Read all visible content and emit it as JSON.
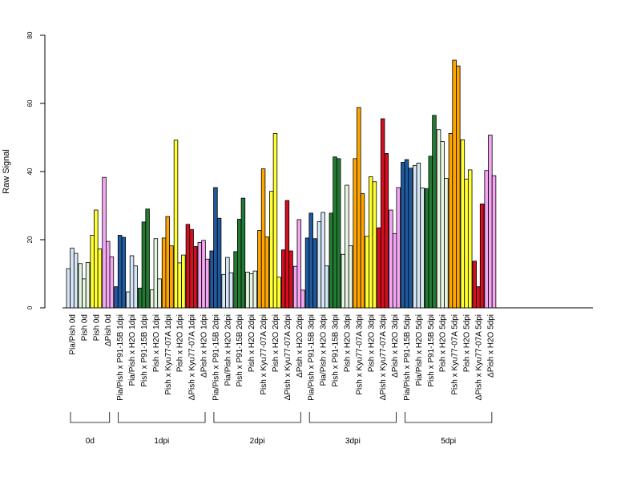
{
  "chart_data": {
    "type": "bar",
    "ylabel": "Raw Signal",
    "ylim": [
      0,
      80
    ],
    "yticks": [
      "0",
      "20",
      "40",
      "60",
      "80"
    ],
    "grid": false,
    "legend": "none",
    "colors": {
      "light_blue": "#d6e6f6",
      "light_green": "#e6f5e0",
      "yellow": "#ffff33",
      "pink": "#f4a6f2",
      "dark_blue": "#1f5aa0",
      "dark_green": "#237a32",
      "orange": "#ffa500",
      "red": "#d40f1f"
    },
    "categories": [
      {
        "label": "Pia/Pish 0d",
        "color": "light_blue",
        "values": [
          11.5,
          17.5,
          16.0
        ]
      },
      {
        "label": "Pish 0d",
        "color": "light_green",
        "values": [
          13.0,
          8.5,
          13.3
        ]
      },
      {
        "label": "Pish 0d",
        "color": "yellow",
        "values": [
          21.3,
          28.7,
          17.3
        ]
      },
      {
        "label": "ΔPish 0d",
        "color": "pink",
        "values": [
          38.3,
          19.5,
          15.0
        ]
      },
      {
        "label": "Pia/Pish x P91-15B 1dpi",
        "color": "dark_blue",
        "values": [
          6.2,
          21.3,
          20.7
        ]
      },
      {
        "label": "Pia/Pish x H2O 1dpi",
        "color": "light_blue",
        "values": [
          4.7,
          15.3,
          12.3
        ]
      },
      {
        "label": "Pish x P91-15B 1dpi",
        "color": "dark_green",
        "values": [
          5.8,
          25.2,
          29.0
        ]
      },
      {
        "label": "Pish x H2O 1dpi",
        "color": "light_green",
        "values": [
          5.3,
          20.3,
          8.5
        ]
      },
      {
        "label": "Pish x Kyu77-07A 1dpi",
        "color": "orange",
        "values": [
          20.5,
          26.8,
          18.2
        ]
      },
      {
        "label": "Pish x H2O 1dpi",
        "color": "yellow",
        "values": [
          49.2,
          13.2,
          15.5
        ]
      },
      {
        "label": "ΔPish x Kyu77-07A 1dpi",
        "color": "red",
        "values": [
          24.5,
          23.0,
          18.0
        ]
      },
      {
        "label": "ΔPish x H2O 1dpi",
        "color": "pink",
        "values": [
          19.2,
          19.8,
          14.3
        ]
      },
      {
        "label": "Pia/Pish x P91-15B 2dpi",
        "color": "dark_blue",
        "values": [
          16.7,
          35.3,
          26.3
        ]
      },
      {
        "label": "Pia/Pish x H2O 2dpi",
        "color": "light_blue",
        "values": [
          9.8,
          14.8,
          10.3
        ]
      },
      {
        "label": "Pish x P91-15B 2dpi",
        "color": "dark_green",
        "values": [
          16.5,
          26.0,
          32.2
        ]
      },
      {
        "label": "Pish x H2O 2dpi",
        "color": "light_green",
        "values": [
          10.5,
          10.0,
          10.8
        ]
      },
      {
        "label": "Pish x Kyu77-07A 2dpi",
        "color": "orange",
        "values": [
          22.7,
          40.8,
          20.8
        ]
      },
      {
        "label": "Pish x H2O 2dpi",
        "color": "yellow",
        "values": [
          34.2,
          51.2,
          9.0
        ]
      },
      {
        "label": "ΔPish x Kyu77-07A 2dpi",
        "color": "red",
        "values": [
          17.0,
          31.5,
          16.7
        ]
      },
      {
        "label": "ΔPish x H2O 2dpi",
        "color": "pink",
        "values": [
          12.2,
          25.9,
          5.2
        ]
      },
      {
        "label": "Pia/Pish x P91-15B 3dpi",
        "color": "dark_blue",
        "values": [
          20.5,
          27.8,
          20.3
        ]
      },
      {
        "label": "Pia/Pish x H2O 3dpi",
        "color": "light_blue",
        "values": [
          25.3,
          28.0,
          12.3
        ]
      },
      {
        "label": "Pish x P91-15B 3dpi",
        "color": "dark_green",
        "values": [
          27.8,
          44.3,
          43.8
        ]
      },
      {
        "label": "Pish x H2O 3dpi",
        "color": "light_green",
        "values": [
          15.7,
          36.0,
          18.2
        ]
      },
      {
        "label": "Pish x Kyu77-07A 3dpi",
        "color": "orange",
        "values": [
          43.8,
          58.8,
          33.5
        ]
      },
      {
        "label": "Pish x H2O 3dpi",
        "color": "yellow",
        "values": [
          21.0,
          38.5,
          37.0
        ]
      },
      {
        "label": "ΔPish x Kyu77-07A 3dpi",
        "color": "red",
        "values": [
          23.5,
          55.5,
          45.3
        ]
      },
      {
        "label": "ΔPish x H2O 3dpi",
        "color": "pink",
        "values": [
          28.7,
          21.8,
          35.3
        ]
      },
      {
        "label": "Pia/Pish x P91-15B 5dpi",
        "color": "dark_blue",
        "values": [
          42.7,
          43.5,
          41.0
        ]
      },
      {
        "label": "Pia/Pish x H2O 5dpi",
        "color": "light_blue",
        "values": [
          41.8,
          42.5,
          35.2
        ]
      },
      {
        "label": "Pish x P91-15B 5dpi",
        "color": "dark_green",
        "values": [
          35.0,
          44.5,
          56.5
        ]
      },
      {
        "label": "Pish x H2O 5dpi",
        "color": "light_green",
        "values": [
          52.3,
          48.8,
          38.0
        ]
      },
      {
        "label": "Pish x Kyu77-07A 5dpi",
        "color": "orange",
        "values": [
          51.2,
          72.7,
          71.0
        ]
      },
      {
        "label": "Pish x H2O 5dpi",
        "color": "yellow",
        "values": [
          49.3,
          37.8,
          40.5
        ]
      },
      {
        "label": "ΔPish x Kyu77-07A 5dpi",
        "color": "red",
        "values": [
          13.7,
          6.2,
          30.5
        ]
      },
      {
        "label": "ΔPish x H2O 5dpi",
        "color": "pink",
        "values": [
          40.3,
          50.7,
          38.8
        ]
      }
    ],
    "groups": [
      {
        "label": "0d",
        "first": 0,
        "last": 3
      },
      {
        "label": "1dpi",
        "first": 4,
        "last": 11
      },
      {
        "label": "2dpi",
        "first": 12,
        "last": 19
      },
      {
        "label": "3dpi",
        "first": 20,
        "last": 27
      },
      {
        "label": "5dpi",
        "first": 28,
        "last": 35
      }
    ]
  }
}
